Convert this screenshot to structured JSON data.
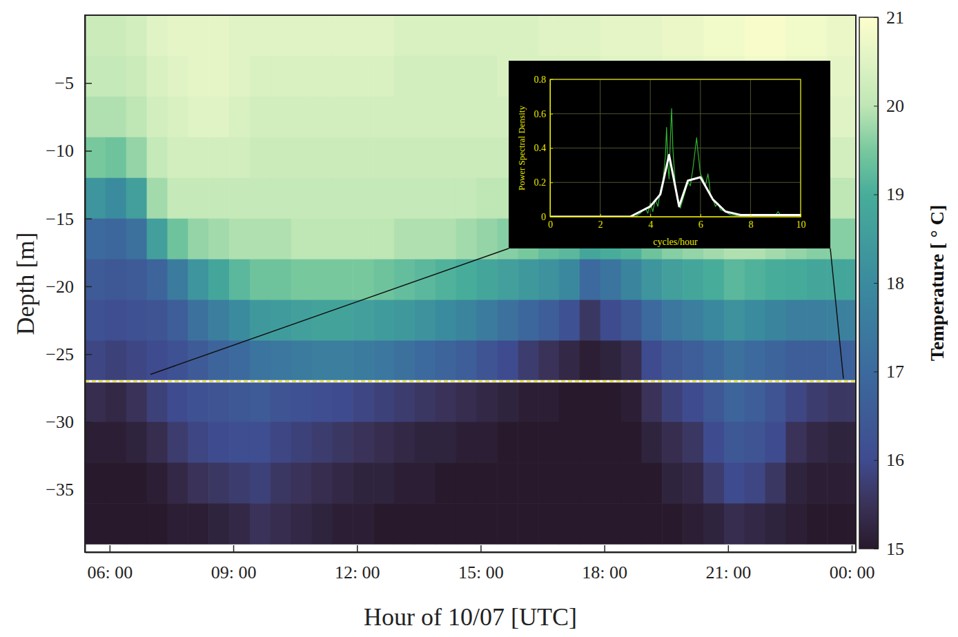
{
  "chart_data": [
    {
      "type": "heatmap",
      "x_label": "Hour of 10/07 [UTC]",
      "y_label": "Depth [m]",
      "xlim": [
        5.4,
        24.1
      ],
      "ylim": [
        -39.6,
        0
      ],
      "xticks": [
        {
          "value": 6,
          "label": "06: 00"
        },
        {
          "value": 9,
          "label": "09: 00"
        },
        {
          "value": 12,
          "label": "12: 00"
        },
        {
          "value": 15,
          "label": "15: 00"
        },
        {
          "value": 18,
          "label": "18: 00"
        },
        {
          "value": 21,
          "label": "21: 00"
        },
        {
          "value": 24,
          "label": "00: 00"
        }
      ],
      "yticks": [
        {
          "value": -5,
          "label": "−5"
        },
        {
          "value": -10,
          "label": "−10"
        },
        {
          "value": -15,
          "label": "−15"
        },
        {
          "value": -20,
          "label": "−20"
        },
        {
          "value": -25,
          "label": "−25"
        },
        {
          "value": -30,
          "label": "−30"
        },
        {
          "value": -35,
          "label": "−35"
        }
      ],
      "x": [
        5.65,
        6.15,
        6.65,
        7.15,
        7.65,
        8.15,
        8.65,
        9.15,
        9.65,
        10.15,
        10.65,
        11.15,
        11.65,
        12.15,
        12.65,
        13.15,
        13.65,
        14.15,
        14.65,
        15.15,
        15.65,
        16.15,
        16.65,
        17.15,
        17.65,
        18.15,
        18.65,
        19.15,
        19.65,
        20.15,
        20.65,
        21.15,
        21.65,
        22.15,
        22.65,
        23.15,
        23.65,
        24.15
      ],
      "y": [
        -1.5,
        -4.5,
        -7.5,
        -10.5,
        -13.5,
        -16.5,
        -19.5,
        -22.5,
        -25.5,
        -28.5,
        -31.5,
        -34.5,
        -37.5
      ],
      "values": [
        [
          20.2,
          20.1,
          19.9,
          19.5,
          18.3,
          17.0,
          16.5,
          16.2,
          15.9,
          15.4,
          15.1,
          15.0,
          15.0
        ],
        [
          20.2,
          20.1,
          19.9,
          19.4,
          18.0,
          16.9,
          16.4,
          16.1,
          15.8,
          15.3,
          15.1,
          15.0,
          15.0
        ],
        [
          20.3,
          20.2,
          20.0,
          19.7,
          18.6,
          17.2,
          16.5,
          16.2,
          15.9,
          15.5,
          15.2,
          15.0,
          15.0
        ],
        [
          20.5,
          20.4,
          20.3,
          20.1,
          19.8,
          18.6,
          16.8,
          16.3,
          16.0,
          15.8,
          15.4,
          15.1,
          15.0
        ],
        [
          20.6,
          20.5,
          20.4,
          20.3,
          20.1,
          19.4,
          17.5,
          16.6,
          16.2,
          16.0,
          15.7,
          15.3,
          15.1
        ],
        [
          20.6,
          20.6,
          20.5,
          20.3,
          20.1,
          19.7,
          18.3,
          17.2,
          16.5,
          16.2,
          15.9,
          15.5,
          15.1
        ],
        [
          20.6,
          20.6,
          20.5,
          20.3,
          20.1,
          19.8,
          18.8,
          17.6,
          16.8,
          16.3,
          16.0,
          15.6,
          15.2
        ],
        [
          20.5,
          20.5,
          20.4,
          20.3,
          20.1,
          19.9,
          19.2,
          18.0,
          17.0,
          16.4,
          16.1,
          15.7,
          15.3
        ],
        [
          20.5,
          20.4,
          20.3,
          20.2,
          20.1,
          19.9,
          19.4,
          18.4,
          17.3,
          16.5,
          16.1,
          15.8,
          15.5
        ],
        [
          20.5,
          20.4,
          20.3,
          20.2,
          20.1,
          19.9,
          19.4,
          18.5,
          17.4,
          16.3,
          15.9,
          15.6,
          15.4
        ],
        [
          20.5,
          20.4,
          20.3,
          20.2,
          20.1,
          20.0,
          19.5,
          18.6,
          17.5,
          16.2,
          15.8,
          15.5,
          15.3
        ],
        [
          20.5,
          20.4,
          20.3,
          20.2,
          20.1,
          20.0,
          19.5,
          18.7,
          17.6,
          16.1,
          15.7,
          15.4,
          15.2
        ],
        [
          20.5,
          20.4,
          20.3,
          20.2,
          20.1,
          20.0,
          19.5,
          18.7,
          17.6,
          16.0,
          15.6,
          15.3,
          15.1
        ],
        [
          20.5,
          20.4,
          20.3,
          20.2,
          20.1,
          20.0,
          19.5,
          18.6,
          17.5,
          15.9,
          15.5,
          15.2,
          15.1
        ],
        [
          20.5,
          20.4,
          20.3,
          20.2,
          20.1,
          20.0,
          19.4,
          18.5,
          17.4,
          15.8,
          15.4,
          15.2,
          15.0
        ],
        [
          20.4,
          20.3,
          20.3,
          20.2,
          20.1,
          19.9,
          19.3,
          18.4,
          17.2,
          15.7,
          15.3,
          15.1,
          15.0
        ],
        [
          20.4,
          20.3,
          20.3,
          20.2,
          20.1,
          19.9,
          19.2,
          18.2,
          17.0,
          15.6,
          15.2,
          15.1,
          15.0
        ],
        [
          20.4,
          20.3,
          20.3,
          20.2,
          20.1,
          19.9,
          19.1,
          18.0,
          16.8,
          15.5,
          15.2,
          15.0,
          15.0
        ],
        [
          20.4,
          20.3,
          20.3,
          20.2,
          20.1,
          19.8,
          19.0,
          17.8,
          16.6,
          15.4,
          15.1,
          15.0,
          15.0
        ],
        [
          20.4,
          20.3,
          20.3,
          20.2,
          20.0,
          19.7,
          18.8,
          17.5,
          16.3,
          15.3,
          15.1,
          15.0,
          15.0
        ],
        [
          20.4,
          20.4,
          20.3,
          20.2,
          20.0,
          19.6,
          18.6,
          17.2,
          16.0,
          15.2,
          15.0,
          15.0,
          15.0
        ],
        [
          20.4,
          20.4,
          20.3,
          20.2,
          20.0,
          19.5,
          18.4,
          16.9,
          15.7,
          15.1,
          15.0,
          15.0,
          15.0
        ],
        [
          20.5,
          20.4,
          20.3,
          20.2,
          19.9,
          19.3,
          18.2,
          16.6,
          15.5,
          15.1,
          15.0,
          15.0,
          15.0
        ],
        [
          20.5,
          20.4,
          20.3,
          20.2,
          19.9,
          19.2,
          17.9,
          16.2,
          15.3,
          15.0,
          15.0,
          15.0,
          15.0
        ],
        [
          20.5,
          20.4,
          20.3,
          20.1,
          19.8,
          18.8,
          17.0,
          15.6,
          15.1,
          15.0,
          15.0,
          15.0,
          15.0
        ],
        [
          20.6,
          20.5,
          20.4,
          20.2,
          19.9,
          19.0,
          17.3,
          16.0,
          15.2,
          15.0,
          15.0,
          15.0,
          15.0
        ],
        [
          20.6,
          20.5,
          20.4,
          20.2,
          19.9,
          19.1,
          17.8,
          16.4,
          15.4,
          15.1,
          15.0,
          15.0,
          15.0
        ],
        [
          20.6,
          20.5,
          20.4,
          20.3,
          20.0,
          19.4,
          18.3,
          17.0,
          16.0,
          15.5,
          15.2,
          15.0,
          15.0
        ],
        [
          20.7,
          20.6,
          20.5,
          20.3,
          20.1,
          19.6,
          18.6,
          17.4,
          16.4,
          15.8,
          15.4,
          15.2,
          15.0
        ],
        [
          20.7,
          20.6,
          20.5,
          20.4,
          20.2,
          19.7,
          18.8,
          17.6,
          16.6,
          16.0,
          15.6,
          15.3,
          15.1
        ],
        [
          20.8,
          20.7,
          20.6,
          20.4,
          20.2,
          19.8,
          19.0,
          17.9,
          16.9,
          16.4,
          16.0,
          15.7,
          15.2
        ],
        [
          20.8,
          20.7,
          20.6,
          20.4,
          20.2,
          19.9,
          19.2,
          18.2,
          17.2,
          16.8,
          16.4,
          16.0,
          15.4
        ],
        [
          20.9,
          20.8,
          20.6,
          20.4,
          20.2,
          19.9,
          19.1,
          18.0,
          17.0,
          16.6,
          16.3,
          15.9,
          15.3
        ],
        [
          20.9,
          20.8,
          20.6,
          20.4,
          20.1,
          19.8,
          19.0,
          17.8,
          16.8,
          16.3,
          16.0,
          15.6,
          15.2
        ],
        [
          20.8,
          20.7,
          20.5,
          20.3,
          20.1,
          19.7,
          18.9,
          17.6,
          16.6,
          15.9,
          15.5,
          15.2,
          15.1
        ],
        [
          20.8,
          20.7,
          20.5,
          20.3,
          20.0,
          19.6,
          18.8,
          17.6,
          16.6,
          15.7,
          15.3,
          15.1,
          15.0
        ],
        [
          20.7,
          20.6,
          20.5,
          20.3,
          20.0,
          19.6,
          18.8,
          17.7,
          16.7,
          15.6,
          15.2,
          15.1,
          15.0
        ],
        [
          20.7,
          20.6,
          20.5,
          20.3,
          20.0,
          19.6,
          18.8,
          17.7,
          16.7,
          15.6,
          15.2,
          15.1,
          15.0
        ]
      ],
      "colorbar": {
        "label": "Temperature [ ° C]",
        "lim": [
          15,
          21
        ],
        "ticks": [
          15,
          16,
          17,
          18,
          19,
          20,
          21
        ]
      },
      "reference_depth": -27
    },
    {
      "type": "line",
      "x_label": "cycles/hour",
      "y_label": "Power Spectral Density",
      "xlim": [
        0,
        10
      ],
      "ylim": [
        0,
        0.8
      ],
      "xticks": [
        0,
        2,
        4,
        6,
        8,
        10
      ],
      "yticks": [
        0,
        0.2,
        0.4,
        0.6,
        0.8
      ],
      "grid": true,
      "series": [
        {
          "color": "#2fb52f",
          "x": [
            0,
            3.4,
            3.6,
            3.8,
            3.9,
            4.0,
            4.1,
            4.2,
            4.3,
            4.4,
            4.5,
            4.6,
            4.65,
            4.7,
            4.75,
            4.8,
            4.85,
            4.9,
            5.0,
            5.1,
            5.2,
            5.3,
            5.4,
            5.5,
            5.6,
            5.7,
            5.8,
            5.85,
            5.9,
            6.0,
            6.1,
            6.2,
            6.3,
            6.35,
            6.4,
            6.5,
            6.6,
            6.7,
            6.8,
            7.0,
            7.2,
            7.5,
            8.0,
            9.0,
            9.1,
            9.2,
            10
          ],
          "values": [
            0,
            0,
            0.02,
            0.05,
            0.02,
            0.08,
            0.03,
            0.1,
            0.06,
            0.15,
            0.2,
            0.35,
            0.52,
            0.3,
            0.22,
            0.45,
            0.63,
            0.4,
            0.18,
            0.08,
            0.05,
            0.1,
            0.15,
            0.2,
            0.18,
            0.28,
            0.4,
            0.46,
            0.38,
            0.25,
            0.22,
            0.18,
            0.25,
            0.2,
            0.12,
            0.1,
            0.06,
            0.08,
            0.04,
            0.03,
            0.01,
            0.005,
            0.005,
            0.01,
            0.03,
            0.01,
            0.005
          ]
        },
        {
          "color": "#ffffff",
          "x": [
            0,
            3.2,
            3.6,
            4.0,
            4.4,
            4.75,
            5.15,
            5.5,
            6.0,
            6.5,
            7.0,
            7.6,
            10
          ],
          "values": [
            0,
            0,
            0.03,
            0.06,
            0.13,
            0.36,
            0.06,
            0.21,
            0.23,
            0.1,
            0.03,
            0.01,
            0.01
          ]
        }
      ]
    }
  ]
}
